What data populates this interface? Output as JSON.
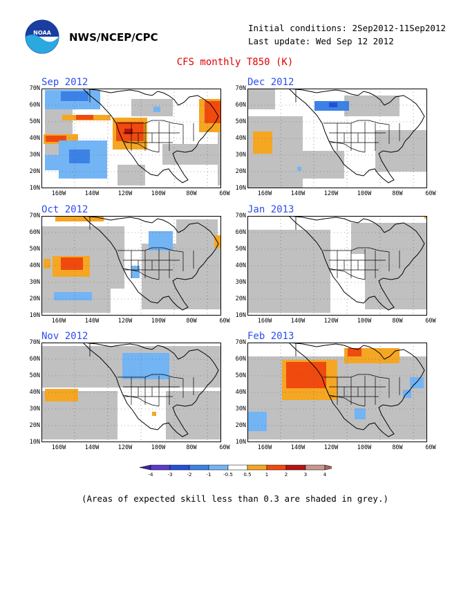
{
  "header": {
    "org": "NWS/NCEP/CPC",
    "logo_text": "NOAA",
    "initial_conditions": "Initial conditions: 2Sep2012-11Sep2012",
    "last_update": "Last update: Wed Sep 12 2012"
  },
  "title": "CFS monthly T850 (K)",
  "axes": {
    "lat_labels": [
      "70N",
      "60N",
      "50N",
      "40N",
      "30N",
      "20N",
      "10N"
    ],
    "lon_labels": [
      "160W",
      "140W",
      "120W",
      "100W",
      "80W",
      "60W"
    ]
  },
  "colors": {
    "grey": "#c0c0c0",
    "land_line": "#000000",
    "m4": "#5a3cc8",
    "m3": "#2450d8",
    "m2": "#3c82e6",
    "m1": "#73b4f5",
    "p1": "#f5a623",
    "p2": "#f04a0f",
    "p3": "#b41414",
    "p4": "#c8968c"
  },
  "panels": [
    {
      "id": "sep",
      "label": "Sep 2012",
      "col": 0,
      "row": 0,
      "patches": [
        {
          "c": "grey",
          "x": 5,
          "y": 22,
          "w": 40,
          "h": 90
        },
        {
          "c": "grey",
          "x": 130,
          "y": 15,
          "w": 60,
          "h": 25
        },
        {
          "c": "grey",
          "x": 175,
          "y": 80,
          "w": 85,
          "h": 30
        },
        {
          "c": "grey",
          "x": 110,
          "y": 110,
          "w": 40,
          "h": 30
        },
        {
          "c": "grey",
          "x": 255,
          "y": 20,
          "w": 6,
          "h": 120
        },
        {
          "c": "m1",
          "x": 5,
          "y": 2,
          "w": 80,
          "h": 28
        },
        {
          "c": "m2",
          "x": 28,
          "y": 4,
          "w": 40,
          "h": 14
        },
        {
          "c": "p1",
          "x": 30,
          "y": 38,
          "w": 70,
          "h": 8
        },
        {
          "c": "p2",
          "x": 50,
          "y": 38,
          "w": 25,
          "h": 7
        },
        {
          "c": "p1",
          "x": 3,
          "y": 66,
          "w": 50,
          "h": 14
        },
        {
          "c": "p2",
          "x": 6,
          "y": 68,
          "w": 30,
          "h": 9
        },
        {
          "c": "m1",
          "x": 5,
          "y": 96,
          "w": 20,
          "h": 22
        },
        {
          "c": "m1",
          "x": 25,
          "y": 75,
          "w": 70,
          "h": 55
        },
        {
          "c": "m2",
          "x": 40,
          "y": 88,
          "w": 30,
          "h": 20
        },
        {
          "c": "p1",
          "x": 103,
          "y": 42,
          "w": 50,
          "h": 46
        },
        {
          "c": "p2",
          "x": 108,
          "y": 48,
          "w": 40,
          "h": 28
        },
        {
          "c": "p3",
          "x": 120,
          "y": 58,
          "w": 12,
          "h": 8
        },
        {
          "c": "p1",
          "x": 228,
          "y": 15,
          "w": 32,
          "h": 48
        },
        {
          "c": "p2",
          "x": 236,
          "y": 18,
          "w": 24,
          "h": 32
        },
        {
          "c": "m1",
          "x": 162,
          "y": 26,
          "w": 10,
          "h": 8
        }
      ]
    },
    {
      "id": "dec",
      "label": "Dec 2012",
      "col": 1,
      "row": 0,
      "patches": [
        {
          "c": "grey",
          "x": 0,
          "y": 40,
          "w": 80,
          "h": 110
        },
        {
          "c": "grey",
          "x": 80,
          "y": 90,
          "w": 60,
          "h": 40
        },
        {
          "c": "grey",
          "x": 185,
          "y": 60,
          "w": 75,
          "h": 60
        },
        {
          "c": "grey",
          "x": 140,
          "y": 10,
          "w": 80,
          "h": 30
        },
        {
          "c": "grey",
          "x": 0,
          "y": 0,
          "w": 40,
          "h": 30
        },
        {
          "c": "m2",
          "x": 97,
          "y": 18,
          "w": 50,
          "h": 14
        },
        {
          "c": "m3",
          "x": 118,
          "y": 20,
          "w": 12,
          "h": 7
        },
        {
          "c": "p1",
          "x": 8,
          "y": 62,
          "w": 28,
          "h": 32
        },
        {
          "c": "m1",
          "x": 72,
          "y": 113,
          "w": 6,
          "h": 6
        }
      ]
    },
    {
      "id": "oct",
      "label": "Oct 2012",
      "col": 0,
      "row": 1,
      "patches": [
        {
          "c": "grey",
          "x": 0,
          "y": 15,
          "w": 120,
          "h": 90
        },
        {
          "c": "grey",
          "x": 0,
          "y": 105,
          "w": 100,
          "h": 35
        },
        {
          "c": "grey",
          "x": 145,
          "y": 40,
          "w": 115,
          "h": 95
        },
        {
          "c": "grey",
          "x": 195,
          "y": 5,
          "w": 60,
          "h": 40
        },
        {
          "c": "p1",
          "x": 20,
          "y": 0,
          "w": 70,
          "h": 8
        },
        {
          "c": "p1",
          "x": 3,
          "y": 62,
          "w": 10,
          "h": 14
        },
        {
          "c": "p1",
          "x": 16,
          "y": 58,
          "w": 54,
          "h": 30
        },
        {
          "c": "p2",
          "x": 28,
          "y": 60,
          "w": 32,
          "h": 18
        },
        {
          "c": "m1",
          "x": 18,
          "y": 110,
          "w": 55,
          "h": 12
        },
        {
          "c": "m1",
          "x": 155,
          "y": 22,
          "w": 35,
          "h": 28
        },
        {
          "c": "m1",
          "x": 130,
          "y": 72,
          "w": 12,
          "h": 18
        },
        {
          "c": "p1",
          "x": 250,
          "y": 28,
          "w": 10,
          "h": 18
        }
      ]
    },
    {
      "id": "jan",
      "label": "Jan 2013",
      "col": 1,
      "row": 1,
      "patches": [
        {
          "c": "grey",
          "x": 0,
          "y": 20,
          "w": 120,
          "h": 120
        },
        {
          "c": "grey",
          "x": 150,
          "y": 10,
          "w": 110,
          "h": 45
        },
        {
          "c": "grey",
          "x": 170,
          "y": 55,
          "w": 90,
          "h": 80
        },
        {
          "c": "p1",
          "x": 256,
          "y": 0,
          "w": 4,
          "h": 4
        }
      ]
    },
    {
      "id": "nov",
      "label": "Nov 2012",
      "col": 0,
      "row": 2,
      "patches": [
        {
          "c": "grey",
          "x": 0,
          "y": 5,
          "w": 260,
          "h": 60
        },
        {
          "c": "grey",
          "x": 0,
          "y": 70,
          "w": 110,
          "h": 70
        },
        {
          "c": "grey",
          "x": 180,
          "y": 70,
          "w": 80,
          "h": 70
        },
        {
          "c": "m1",
          "x": 117,
          "y": 15,
          "w": 68,
          "h": 38
        },
        {
          "c": "p1",
          "x": 5,
          "y": 67,
          "w": 48,
          "h": 18
        },
        {
          "c": "p1",
          "x": 160,
          "y": 100,
          "w": 6,
          "h": 6
        }
      ]
    },
    {
      "id": "feb",
      "label": "Feb 2013",
      "col": 1,
      "row": 2,
      "patches": [
        {
          "c": "grey",
          "x": 0,
          "y": 20,
          "w": 260,
          "h": 120
        },
        {
          "c": "p1",
          "x": 50,
          "y": 25,
          "w": 80,
          "h": 58
        },
        {
          "c": "p2",
          "x": 56,
          "y": 28,
          "w": 58,
          "h": 38
        },
        {
          "c": "p1",
          "x": 140,
          "y": 8,
          "w": 80,
          "h": 22
        },
        {
          "c": "p2",
          "x": 145,
          "y": 8,
          "w": 20,
          "h": 12
        },
        {
          "c": "m1",
          "x": 0,
          "y": 100,
          "w": 28,
          "h": 28
        },
        {
          "c": "m1",
          "x": 155,
          "y": 95,
          "w": 16,
          "h": 16
        },
        {
          "c": "m1",
          "x": 235,
          "y": 50,
          "w": 20,
          "h": 16
        },
        {
          "c": "m1",
          "x": 225,
          "y": 68,
          "w": 12,
          "h": 12
        }
      ]
    }
  ],
  "colorbar": {
    "labels": [
      "-4",
      "-3",
      "-2",
      "-1",
      "-0.5",
      "0.5",
      "1",
      "2",
      "3",
      "4"
    ],
    "colors": [
      "#5a3cc8",
      "#2450d8",
      "#3c82e6",
      "#73b4f5",
      "#ffffff",
      "#f5a623",
      "#f04a0f",
      "#b41414",
      "#c8968c"
    ],
    "end_low": "#3a28a0",
    "end_high": "#a06a5a"
  },
  "caption": "(Areas of expected skill less than 0.3 are shaded in grey.)"
}
